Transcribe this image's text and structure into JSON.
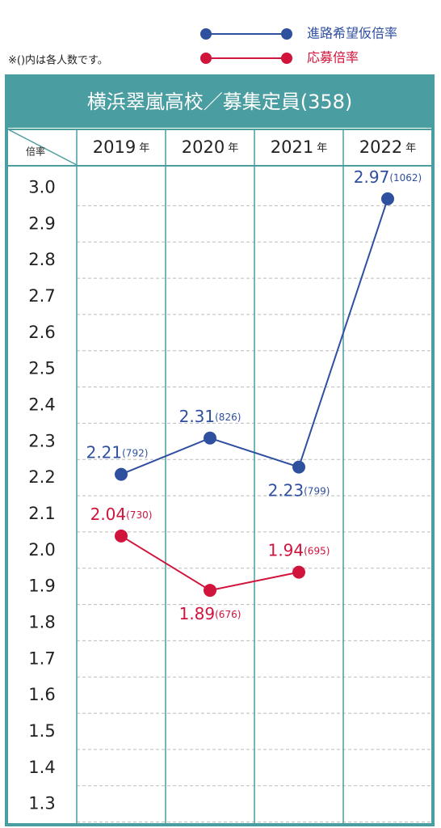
{
  "chart_data": {
    "type": "line",
    "title": "横浜翠嵐高校／募集定員(358)",
    "note": "※()内は各人数です。",
    "y_header": "倍率",
    "year_suffix": "年",
    "categories": [
      "2019",
      "2020",
      "2021",
      "2022"
    ],
    "ylim": [
      1.25,
      3.05
    ],
    "yticks": [
      {
        "value": 3.0,
        "label": "3.0"
      },
      2.9,
      2.8,
      2.7,
      2.6,
      2.5,
      2.4,
      2.3,
      2.2,
      2.1,
      {
        "value": 2.0,
        "label": "2.0"
      },
      1.9,
      1.8,
      1.7,
      1.6,
      1.5,
      1.4,
      1.3
    ],
    "grid": true,
    "series": [
      {
        "name": "進路希望仮倍率",
        "color": "#2f4f9f",
        "values": [
          2.21,
          2.31,
          2.23,
          2.97
        ],
        "count_labels": [
          "(792)",
          "(826)",
          "(799)",
          "(1062)"
        ]
      },
      {
        "name": "応募倍率",
        "color": "#d0143c",
        "values": [
          2.04,
          1.89,
          1.94,
          null
        ],
        "count_labels": [
          "(730)",
          "(676)",
          "(695)",
          null
        ]
      }
    ]
  }
}
